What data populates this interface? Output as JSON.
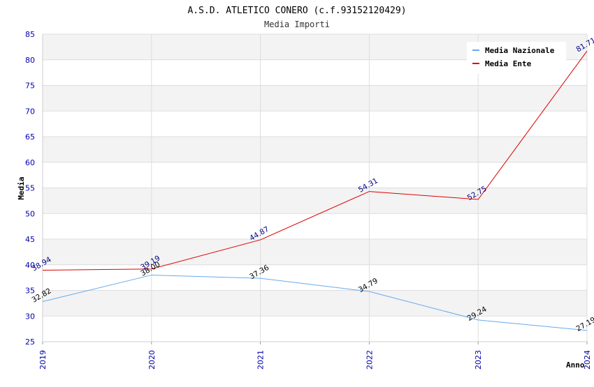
{
  "chart_data": {
    "type": "line",
    "title": "A.S.D. ATLETICO CONERO (c.f.93152120429)",
    "subtitle": "Media Importi",
    "ylabel": "Media",
    "xlabel": "Anno",
    "categories": [
      "2019",
      "2020",
      "2021",
      "2022",
      "2023",
      "2024"
    ],
    "ylim": [
      25,
      85
    ],
    "yticks": [
      25,
      30,
      35,
      40,
      45,
      50,
      55,
      60,
      65,
      70,
      75,
      80,
      85
    ],
    "grid": true,
    "legend_position": "top-right",
    "series": [
      {
        "name": "Media Nazionale",
        "color": "#66aaee",
        "label_color": "#000000",
        "values": [
          32.82,
          38.0,
          37.36,
          34.79,
          29.24,
          27.19
        ],
        "labels": [
          "32.82",
          "38.00",
          "37.36",
          "34.79",
          "29.24",
          "27.19"
        ]
      },
      {
        "name": "Media Ente",
        "color": "#dd0000",
        "label_color": "#000088",
        "values": [
          38.94,
          39.19,
          44.87,
          54.31,
          52.75,
          81.71
        ],
        "labels": [
          "38.94",
          "39.19",
          "44.87",
          "54.31",
          "52.75",
          "81.71"
        ]
      }
    ]
  }
}
